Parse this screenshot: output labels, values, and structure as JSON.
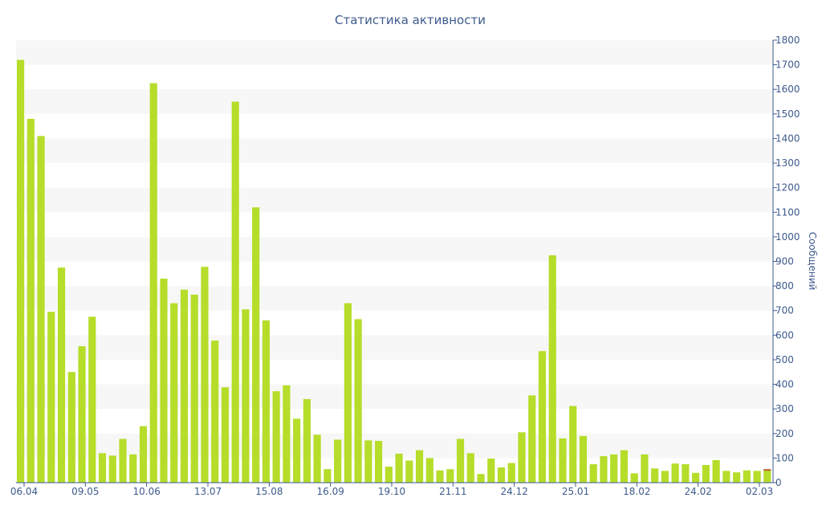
{
  "chart_data": {
    "type": "bar",
    "title": "Статистика активности",
    "ylabel": "Сообщений",
    "xlabel": "",
    "ylim": [
      0,
      1800
    ],
    "y_axis_position": "right",
    "grid": "horizontal alternating bands",
    "legend": "none",
    "x_tick_labels": [
      "06.04",
      "09.05",
      "10.06",
      "13.07",
      "15.08",
      "16.09",
      "19.10",
      "21.11",
      "24.12",
      "25.01",
      "18.02",
      "24.02",
      "02.03"
    ],
    "y_tick_labels": [
      "0",
      "100",
      "200",
      "300",
      "400",
      "500",
      "600",
      "700",
      "800",
      "900",
      "1000",
      "1100",
      "1200",
      "1300",
      "1400",
      "1500",
      "1600",
      "1700",
      "1800"
    ],
    "series": [
      {
        "color": "#b5dd2a",
        "values": [
          1720,
          1480,
          1410,
          695,
          875,
          450,
          555,
          675,
          120,
          110,
          178,
          115,
          230,
          1625,
          830,
          730,
          785,
          765,
          878,
          578,
          388,
          1550,
          705,
          1120,
          660,
          372,
          396,
          260,
          340,
          195,
          55,
          175,
          730,
          665,
          172,
          170,
          65,
          118,
          90,
          132,
          100,
          50,
          55,
          178,
          120,
          35,
          98,
          62,
          80,
          205,
          355,
          535,
          925,
          180,
          312,
          190,
          75,
          108,
          115,
          132,
          38,
          115,
          58,
          48,
          78,
          75,
          40,
          72,
          92,
          48,
          42,
          50,
          48,
          55
        ]
      }
    ],
    "last_bar_top_color": "#c0633a"
  }
}
